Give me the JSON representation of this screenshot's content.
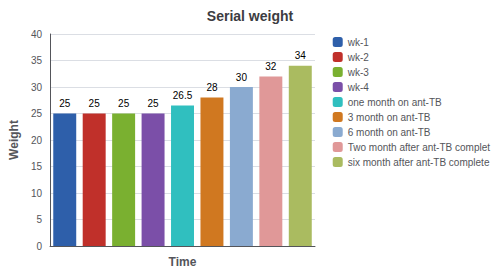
{
  "chart_data": {
    "type": "bar",
    "title": "Serial weight",
    "xlabel": "Time",
    "ylabel": "Weight",
    "categories": [
      "wk-1",
      "wk-2",
      "wk-3",
      "wk-4",
      "one month on ant-TB",
      "3 month on ant-TB",
      "6 month on ant-TB",
      "Two month after ant-TB complet",
      "six month after ant-TB complete"
    ],
    "values": [
      25,
      25,
      25,
      25,
      26.5,
      28,
      30,
      32,
      34
    ],
    "colors": [
      "#2E5FAA",
      "#C0302A",
      "#7AB030",
      "#7B4FA8",
      "#30BFBF",
      "#D07820",
      "#8AAAD0",
      "#E09898",
      "#AABB60"
    ],
    "ylim": [
      0,
      40
    ],
    "yticks": [
      0,
      5,
      10,
      15,
      20,
      25,
      30,
      35,
      40
    ],
    "grid": true,
    "data_labels": true,
    "legend": "right",
    "tick_labels": "y"
  }
}
